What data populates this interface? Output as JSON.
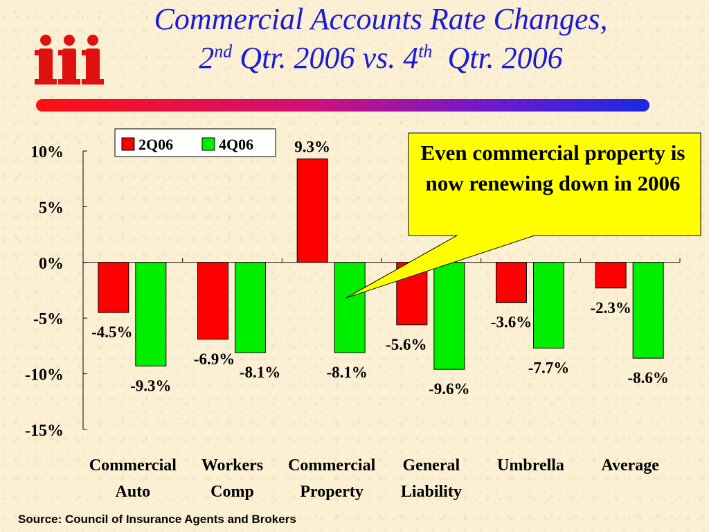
{
  "title": {
    "line1": "Commercial Accounts Rate Changes,",
    "line2_a": "2",
    "line2_a_sup": "nd",
    "line2_b": " Qtr. 2006 vs. 4",
    "line2_b_sup": "th",
    "line2_c": "  Qtr. 2006"
  },
  "logo": {
    "text": "iii",
    "color": "#e01010"
  },
  "callout": {
    "text": "Even commercial property is now renewing down in 2006",
    "fill": "#ffff00"
  },
  "source": "Source: Council of Insurance Agents and Brokers",
  "chart_data": {
    "type": "bar",
    "categories": [
      [
        "Commercial",
        "Auto"
      ],
      [
        "Workers",
        "Comp"
      ],
      [
        "Commercial",
        "Property"
      ],
      [
        "General",
        "Liability"
      ],
      [
        "Umbrella"
      ],
      [
        "Average"
      ]
    ],
    "series": [
      {
        "name": "2Q06",
        "color": "#ff0000",
        "values": [
          -4.5,
          -6.9,
          9.3,
          -5.6,
          -3.6,
          -2.3
        ],
        "labels": [
          "-4.5%",
          "-6.9%",
          "9.3%",
          "-5.6%",
          "-3.6%",
          "-2.3%"
        ]
      },
      {
        "name": "4Q06",
        "color": "#00ee00",
        "values": [
          -9.3,
          -8.1,
          -8.1,
          -9.6,
          -7.7,
          -8.6
        ],
        "labels": [
          "-9.3%",
          "-8.1%",
          "-8.1%",
          "-9.6%",
          "-7.7%",
          "-8.6%"
        ]
      }
    ],
    "ylim": [
      -15,
      10
    ],
    "yticks": [
      10,
      5,
      0,
      -5,
      -10,
      -15
    ],
    "ytick_labels": [
      "10%",
      "5%",
      "0%",
      "-5%",
      "-10%",
      "-15%"
    ],
    "grid": false,
    "legend": "top-left"
  }
}
